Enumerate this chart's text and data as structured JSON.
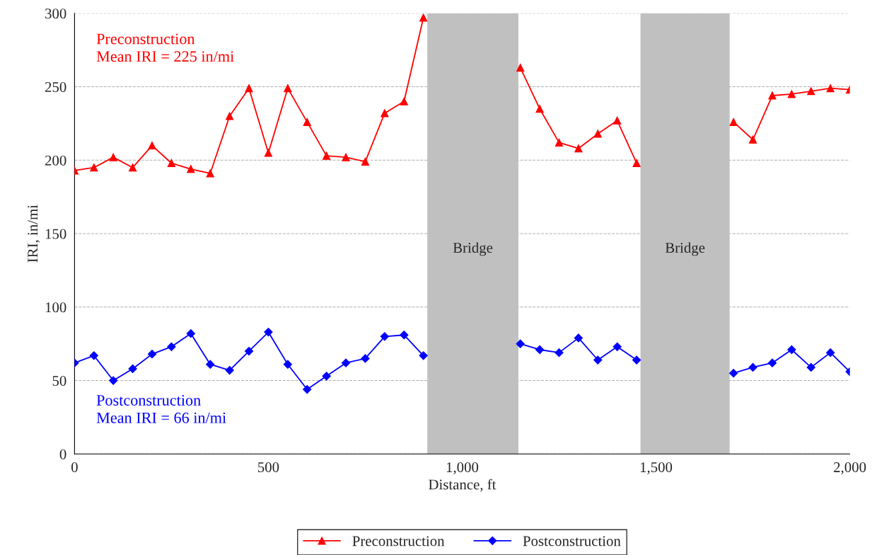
{
  "chart_data": {
    "type": "line",
    "xlabel": "Distance, ft",
    "ylabel": "IRI, in/mi",
    "xlim": [
      0,
      2000
    ],
    "xticks": [
      {
        "value": 0,
        "label": "0"
      },
      {
        "value": 500,
        "label": "500"
      },
      {
        "value": 1000,
        "label": "1,000"
      },
      {
        "value": 1500,
        "label": "1,500"
      },
      {
        "value": 2000,
        "label": "2,000"
      }
    ],
    "ylim": [
      0,
      300
    ],
    "yticks": [
      0,
      50,
      100,
      150,
      200,
      250,
      300
    ],
    "grid": "y",
    "legend": "bottom",
    "series": [
      {
        "name": "Preconstruction",
        "color": "#ff0000",
        "marker": "triangle",
        "x": [
          0,
          50,
          100,
          150,
          200,
          250,
          300,
          350,
          400,
          450,
          500,
          550,
          600,
          650,
          700,
          750,
          800,
          850,
          900,
          1000,
          1150,
          1200,
          1250,
          1300,
          1350,
          1400,
          1450,
          1575,
          1700,
          1750,
          1800,
          1850,
          1900,
          1950,
          2000
        ],
        "values": [
          193,
          195,
          202,
          195,
          210,
          198,
          194,
          191,
          230,
          249,
          205,
          249,
          226,
          203,
          202,
          199,
          232,
          240,
          297,
          null,
          263,
          235,
          212,
          208,
          218,
          227,
          198,
          null,
          226,
          214,
          244,
          245,
          247,
          249,
          248
        ]
      },
      {
        "name": "Postconstruction",
        "color": "#0000ff",
        "marker": "diamond",
        "x": [
          0,
          50,
          100,
          150,
          200,
          250,
          300,
          350,
          400,
          450,
          500,
          550,
          600,
          650,
          700,
          750,
          800,
          850,
          900,
          1000,
          1150,
          1200,
          1250,
          1300,
          1350,
          1400,
          1450,
          1575,
          1700,
          1750,
          1800,
          1850,
          1900,
          1950,
          2000
        ],
        "values": [
          62,
          67,
          50,
          58,
          68,
          73,
          82,
          61,
          57,
          70,
          83,
          61,
          44,
          53,
          62,
          65,
          80,
          81,
          67,
          null,
          75,
          71,
          69,
          79,
          64,
          73,
          64,
          null,
          55,
          59,
          62,
          71,
          59,
          69,
          56
        ]
      }
    ],
    "bands": [
      {
        "axis": "x",
        "from": 910,
        "to": 1145,
        "label": "Bridge",
        "color": "#c0c0c0"
      },
      {
        "axis": "x",
        "from": 1460,
        "to": 1690,
        "label": "Bridge",
        "color": "#c0c0c0"
      }
    ],
    "annotations": [
      "Preconstruction\nMean IRI = 225 in/mi",
      "Postconstruction\nMean IRI = 66 in/mi"
    ]
  }
}
